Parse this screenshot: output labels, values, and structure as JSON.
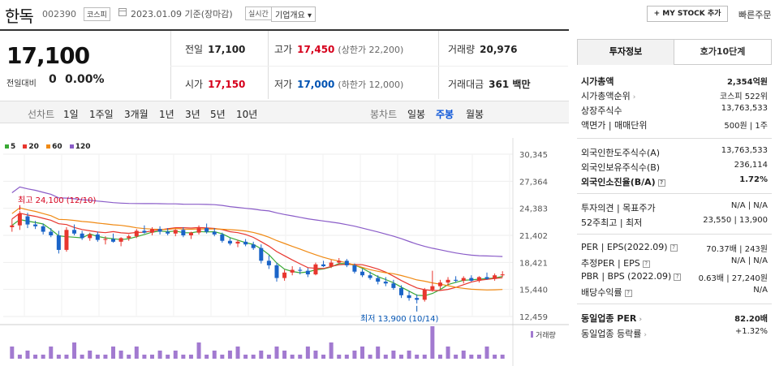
{
  "header": {
    "stock_name": "한독",
    "stock_code": "002390",
    "market": "코스피",
    "date": "2023.01.09  기준(장마감)",
    "realtime": "실시간",
    "corp_info": "기업개요 ▾",
    "mystock": "+ MY STOCK 추가",
    "quick_order": "빠른주문"
  },
  "quote": {
    "price": "17,100",
    "diff_label": "전일대비",
    "diff_value": "0",
    "diff_pct": "0.00%",
    "prev_close_label": "전일",
    "prev_close": "17,100",
    "open_label": "시가",
    "open": "17,150",
    "high_label": "고가",
    "high": "17,450",
    "upper_limit": "(상한가 22,200)",
    "low_label": "저가",
    "low": "17,000",
    "lower_limit": "(하한가 12,000)",
    "volume_label": "거래량",
    "volume": "20,976",
    "amount_label": "거래대금",
    "amount": "361 백만"
  },
  "period_bar": {
    "line_chart_label": "선차트",
    "periods": [
      "1일",
      "1주일",
      "3개월",
      "1년",
      "3년",
      "5년",
      "10년"
    ],
    "candle_label": "봉차트",
    "candles": [
      "일봉",
      "주봉",
      "월봉"
    ],
    "active_candle": "주봉"
  },
  "legend": [
    {
      "label": "5",
      "color": "#39a935"
    },
    {
      "label": "20",
      "color": "#e8362e"
    },
    {
      "label": "60",
      "color": "#f08a14"
    },
    {
      "label": "120",
      "color": "#8a5cc8"
    }
  ],
  "chart_data": {
    "type": "candlestick",
    "y_ticks": [
      "30,345",
      "27,364",
      "24,383",
      "21,402",
      "18,421",
      "15,440",
      "12,459"
    ],
    "ylim": [
      12459,
      30345
    ],
    "annotation_high": "최고 24,100 (12/10)",
    "annotation_low": "최저 13,900 (10/14)",
    "volume_label": "거래량",
    "series": [
      {
        "name": "5",
        "color": "#39a935"
      },
      {
        "name": "20",
        "color": "#e8362e"
      },
      {
        "name": "60",
        "color": "#f08a14"
      },
      {
        "name": "120",
        "color": "#8a5cc8"
      }
    ],
    "candles": [
      [
        22300,
        23200,
        21800,
        22500
      ],
      [
        22500,
        24100,
        22000,
        23800
      ],
      [
        23500,
        23900,
        22200,
        22600
      ],
      [
        22600,
        23000,
        22100,
        22400
      ],
      [
        22400,
        22700,
        21500,
        21800
      ],
      [
        21800,
        22200,
        21200,
        21400
      ],
      [
        21400,
        21900,
        19400,
        19800
      ],
      [
        19800,
        22300,
        19600,
        22000
      ],
      [
        22000,
        22600,
        21400,
        21600
      ],
      [
        21600,
        21900,
        20900,
        21100
      ],
      [
        21100,
        21700,
        20800,
        21500
      ],
      [
        21500,
        21800,
        20700,
        20900
      ],
      [
        20900,
        21300,
        20400,
        21000
      ],
      [
        21000,
        21600,
        20600,
        20700
      ],
      [
        20700,
        21200,
        20200,
        21100
      ],
      [
        21100,
        21500,
        20800,
        21300
      ],
      [
        21300,
        22100,
        21100,
        21900
      ],
      [
        21900,
        22500,
        21600,
        21700
      ],
      [
        21700,
        22300,
        21400,
        22100
      ],
      [
        22100,
        22400,
        21500,
        21800
      ],
      [
        21800,
        22200,
        21400,
        21600
      ],
      [
        21600,
        22100,
        21300,
        22000
      ],
      [
        22000,
        22300,
        21200,
        21400
      ],
      [
        21400,
        21800,
        21000,
        21700
      ],
      [
        21700,
        22500,
        21500,
        22200
      ],
      [
        22200,
        22700,
        21600,
        21800
      ],
      [
        21800,
        22200,
        21300,
        21500
      ],
      [
        21500,
        21700,
        20600,
        20800
      ],
      [
        20800,
        21100,
        20300,
        20500
      ],
      [
        20500,
        20900,
        20100,
        20700
      ],
      [
        20700,
        21000,
        20200,
        20400
      ],
      [
        20400,
        20700,
        19800,
        20000
      ],
      [
        20000,
        20400,
        18300,
        18600
      ],
      [
        18600,
        19200,
        17700,
        18100
      ],
      [
        18100,
        18400,
        16300,
        16700
      ],
      [
        16700,
        17600,
        16400,
        17300
      ],
      [
        17300,
        18000,
        17000,
        17600
      ],
      [
        17600,
        17900,
        17100,
        17500
      ],
      [
        17500,
        17800,
        16800,
        17100
      ],
      [
        17100,
        18400,
        17000,
        18200
      ],
      [
        18200,
        18600,
        17900,
        18000
      ],
      [
        18000,
        18700,
        17800,
        18400
      ],
      [
        18400,
        18900,
        18200,
        18600
      ],
      [
        18600,
        18800,
        17900,
        18100
      ],
      [
        18100,
        18300,
        17200,
        17400
      ],
      [
        17400,
        17700,
        16800,
        17000
      ],
      [
        17000,
        17400,
        16500,
        16700
      ],
      [
        16700,
        17000,
        16000,
        16300
      ],
      [
        16300,
        16800,
        15800,
        16100
      ],
      [
        16100,
        16500,
        15400,
        15600
      ],
      [
        15600,
        15900,
        14500,
        14800
      ],
      [
        14800,
        15300,
        14200,
        14500
      ],
      [
        14500,
        14900,
        13900,
        14300
      ],
      [
        14300,
        15600,
        14100,
        15400
      ],
      [
        15400,
        17500,
        15200,
        15800
      ],
      [
        15800,
        16500,
        15500,
        16200
      ],
      [
        16200,
        16800,
        15900,
        16500
      ],
      [
        16500,
        16900,
        16200,
        16400
      ],
      [
        16400,
        16900,
        16100,
        16700
      ],
      [
        16700,
        17000,
        16300,
        16400
      ],
      [
        16400,
        16900,
        16200,
        16800
      ],
      [
        16800,
        17300,
        16500,
        16600
      ],
      [
        16600,
        17200,
        16400,
        17000
      ],
      [
        17000,
        17450,
        16800,
        17100
      ]
    ],
    "volume": [
      3,
      1,
      2,
      1,
      1,
      3,
      1,
      1,
      4,
      1,
      2,
      1,
      1,
      3,
      2,
      1,
      3,
      1,
      1,
      2,
      1,
      2,
      1,
      1,
      4,
      1,
      2,
      1,
      2,
      3,
      1,
      1,
      2,
      1,
      3,
      2,
      1,
      1,
      3,
      2,
      1,
      4,
      1,
      1,
      2,
      3,
      1,
      3,
      1,
      2,
      1,
      2,
      1,
      1,
      8,
      1,
      3,
      1,
      2,
      1,
      1,
      3,
      1,
      1
    ]
  },
  "right_panel": {
    "tab_info": "투자정보",
    "tab_orderbook": "호가10단계",
    "market_cap_label": "시가총액",
    "market_cap": "2,354억원",
    "rank_label": "시가총액순위",
    "rank": "코스피  522위",
    "shares_label": "상장주식수",
    "shares": "13,763,533",
    "par_label": "액면가 | 매매단위",
    "par": "500원 | 1주",
    "foreign_limit_label": "외국인한도주식수(A)",
    "foreign_limit": "13,763,533",
    "foreign_hold_label": "외국인보유주식수(B)",
    "foreign_hold": "236,114",
    "foreign_ratio_label": "외국인소진율(B/A)",
    "foreign_ratio": "1.72%",
    "opinion_label": "투자의견 | 목표주가",
    "opinion": "N/A  |  N/A",
    "wk52_label": "52주최고 | 최저",
    "wk52": "23,550 | 13,900",
    "per_label": "PER | EPS(2022.09)",
    "per": "70.37배 | 243원",
    "est_per_label": "추정PER | EPS",
    "est_per": "N/A | N/A",
    "pbr_label": "PBR | BPS (2022.09)",
    "pbr": "0.63배 | 27,240원",
    "div_label": "배당수익률",
    "div": "N/A",
    "ind_per_label": "동일업종 PER",
    "ind_per": "82.20배",
    "ind_rate_label": "동일업종 등락률",
    "ind_rate": "+1.32%"
  }
}
